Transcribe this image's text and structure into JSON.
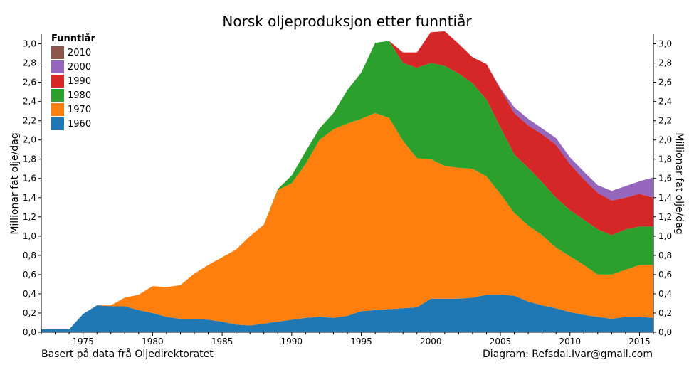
{
  "chart_data": {
    "type": "area",
    "stacked": true,
    "title": "Norsk oljeproduksjon etter funntiår",
    "ylabel": "Millionar fat olje/dag",
    "ylabel_right": "Millionar fat olje/dag",
    "xlim": [
      1972,
      2016
    ],
    "ylim": [
      0,
      3.1
    ],
    "x_ticks": [
      1975,
      1980,
      1985,
      1990,
      1995,
      2000,
      2005,
      2010,
      2015
    ],
    "y_ticks": [
      "0,0",
      "0,2",
      "0,4",
      "0,6",
      "0,8",
      "1,0",
      "1,2",
      "1,4",
      "1,6",
      "1,8",
      "2,0",
      "2,2",
      "2,4",
      "2,6",
      "2,8",
      "3,0"
    ],
    "legend_title": "Funntiår",
    "legend_position": "top-left",
    "x": [
      1972,
      1973,
      1974,
      1975,
      1976,
      1977,
      1978,
      1979,
      1980,
      1981,
      1982,
      1983,
      1984,
      1985,
      1986,
      1987,
      1988,
      1989,
      1990,
      1991,
      1992,
      1993,
      1994,
      1995,
      1996,
      1997,
      1998,
      1999,
      2000,
      2001,
      2002,
      2003,
      2004,
      2005,
      2006,
      2007,
      2008,
      2009,
      2010,
      2011,
      2012,
      2013,
      2014,
      2015,
      2016
    ],
    "series": [
      {
        "name": "1960",
        "color": "#1f77b4",
        "values": [
          0.03,
          0.03,
          0.03,
          0.19,
          0.28,
          0.27,
          0.27,
          0.23,
          0.2,
          0.16,
          0.14,
          0.14,
          0.13,
          0.11,
          0.08,
          0.07,
          0.09,
          0.11,
          0.13,
          0.15,
          0.16,
          0.15,
          0.17,
          0.22,
          0.23,
          0.24,
          0.25,
          0.26,
          0.35,
          0.35,
          0.35,
          0.36,
          0.39,
          0.39,
          0.38,
          0.32,
          0.28,
          0.25,
          0.21,
          0.18,
          0.16,
          0.14,
          0.16,
          0.16,
          0.15
        ]
      },
      {
        "name": "1970",
        "color": "#ff7f0e",
        "values": [
          0,
          0,
          0,
          0,
          0,
          0.01,
          0.09,
          0.16,
          0.28,
          0.31,
          0.35,
          0.47,
          0.57,
          0.67,
          0.78,
          0.93,
          1.03,
          1.37,
          1.42,
          1.6,
          1.84,
          1.96,
          2.0,
          2.0,
          2.05,
          1.99,
          1.74,
          1.55,
          1.45,
          1.38,
          1.36,
          1.34,
          1.23,
          1.05,
          0.86,
          0.79,
          0.73,
          0.63,
          0.58,
          0.52,
          0.44,
          0.46,
          0.49,
          0.54,
          0.55
        ]
      },
      {
        "name": "1980",
        "color": "#2ca02c",
        "values": [
          0,
          0,
          0,
          0,
          0,
          0,
          0,
          0,
          0,
          0,
          0,
          0,
          0,
          0,
          0,
          0,
          0,
          0.01,
          0.08,
          0.13,
          0.12,
          0.17,
          0.35,
          0.48,
          0.73,
          0.8,
          0.81,
          0.94,
          1.0,
          1.04,
          0.98,
          0.89,
          0.8,
          0.69,
          0.61,
          0.6,
          0.55,
          0.52,
          0.48,
          0.47,
          0.47,
          0.41,
          0.42,
          0.4,
          0.4
        ]
      },
      {
        "name": "1990",
        "color": "#d62728",
        "values": [
          0,
          0,
          0,
          0,
          0,
          0,
          0,
          0,
          0,
          0,
          0,
          0,
          0,
          0,
          0,
          0,
          0,
          0,
          0,
          0,
          0,
          0,
          0,
          0,
          0,
          0,
          0.11,
          0.16,
          0.32,
          0.36,
          0.31,
          0.27,
          0.37,
          0.4,
          0.43,
          0.44,
          0.5,
          0.55,
          0.48,
          0.42,
          0.38,
          0.36,
          0.33,
          0.34,
          0.3
        ]
      },
      {
        "name": "2000",
        "color": "#9467bd",
        "values": [
          0,
          0,
          0,
          0,
          0,
          0,
          0,
          0,
          0,
          0,
          0,
          0,
          0,
          0,
          0,
          0,
          0,
          0,
          0,
          0,
          0,
          0,
          0,
          0,
          0,
          0,
          0,
          0,
          0,
          0,
          0,
          0,
          0,
          0.01,
          0.06,
          0.07,
          0.06,
          0.07,
          0.07,
          0.08,
          0.08,
          0.1,
          0.12,
          0.13,
          0.21
        ]
      },
      {
        "name": "2010",
        "color": "#8c564b",
        "values": [
          0,
          0,
          0,
          0,
          0,
          0,
          0,
          0,
          0,
          0,
          0,
          0,
          0,
          0,
          0,
          0,
          0,
          0,
          0,
          0,
          0,
          0,
          0,
          0,
          0,
          0,
          0,
          0,
          0,
          0,
          0,
          0,
          0,
          0,
          0,
          0,
          0,
          0,
          0,
          0,
          0,
          0,
          0,
          0,
          0
        ]
      }
    ]
  },
  "footer": {
    "source": "Basert på data frå Oljedirektoratet",
    "credit": "Diagram: Refsdal.Ivar@gmail.com"
  }
}
